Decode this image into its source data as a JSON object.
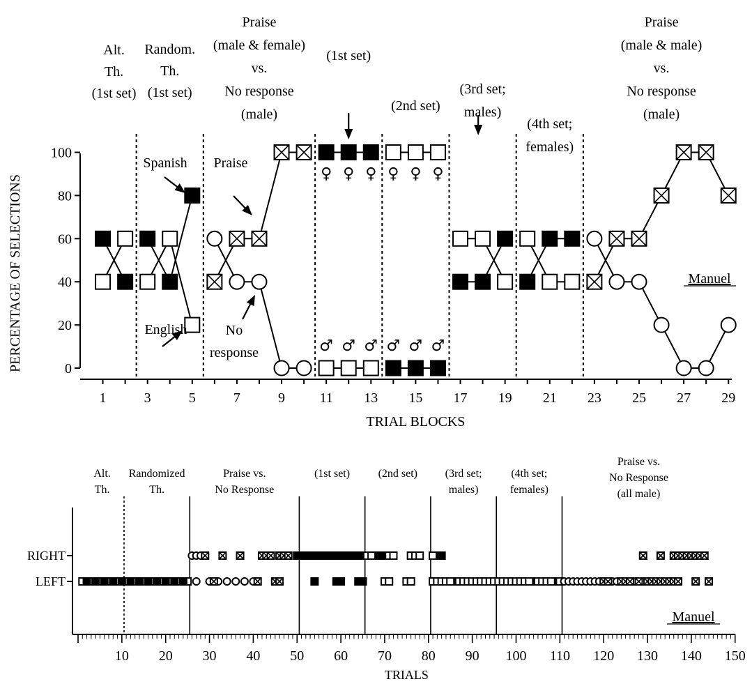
{
  "chart_data": [
    {
      "type": "line",
      "ylabel": "PERCENTAGE OF SELECTIONS",
      "xlabel": "TRIAL BLOCKS",
      "xlim": [
        0,
        29
      ],
      "ylim": [
        0,
        100
      ],
      "x_ticks": [
        1,
        3,
        5,
        7,
        9,
        11,
        13,
        15,
        17,
        19,
        21,
        23,
        25,
        27,
        29
      ],
      "y_ticks": [
        0,
        20,
        40,
        60,
        80,
        100
      ],
      "phase_dividers": [
        2.5,
        5.5,
        10.5,
        13.5,
        16.5,
        19.5,
        22.5
      ],
      "subject_label": "Manuel",
      "phase_labels": [
        {
          "at": 1.5,
          "lines": [
            "Alt.",
            "Th.",
            "(1st set)"
          ]
        },
        {
          "at": 4,
          "lines": [
            "Random.",
            "Th.",
            "(1st set)"
          ]
        },
        {
          "at": 8,
          "lines": [
            "Praise",
            "(male & female)",
            "vs.",
            "No response",
            "(male)"
          ]
        },
        {
          "at": 12,
          "lines": [
            "(1st set)"
          ]
        },
        {
          "at": 15,
          "lines": [
            "(2nd set)"
          ]
        },
        {
          "at": 18,
          "lines": [
            "(3rd set;",
            "males)"
          ]
        },
        {
          "at": 21,
          "lines": [
            "(4th set;",
            "females)"
          ]
        },
        {
          "at": 26,
          "lines": [
            "Praise",
            "(male & male)",
            "vs.",
            "No response",
            "(male)"
          ]
        }
      ],
      "annotations": {
        "spanish": "Spanish",
        "english": "English",
        "praise": "Praise",
        "no_response_1": "No",
        "no_response_2": "response"
      },
      "series": [
        {
          "marker": "filled-square",
          "segments": [
            {
              "x": [
                1,
                2
              ],
              "y": [
                60,
                40
              ]
            },
            {
              "x": [
                3,
                4,
                5
              ],
              "y": [
                60,
                40,
                80
              ]
            },
            {
              "x": [
                11,
                12,
                13
              ],
              "y": [
                100,
                100,
                100
              ]
            },
            {
              "x": [
                14,
                15,
                16
              ],
              "y": [
                0,
                0,
                0
              ]
            },
            {
              "x": [
                17,
                18,
                19
              ],
              "y": [
                40,
                40,
                60
              ]
            },
            {
              "x": [
                20,
                21,
                22
              ],
              "y": [
                40,
                60,
                60
              ]
            }
          ]
        },
        {
          "marker": "open-square",
          "segments": [
            {
              "x": [
                1,
                2
              ],
              "y": [
                40,
                60
              ]
            },
            {
              "x": [
                3,
                4,
                5
              ],
              "y": [
                40,
                60,
                20
              ]
            },
            {
              "x": [
                11,
                12,
                13
              ],
              "y": [
                0,
                0,
                0
              ]
            },
            {
              "x": [
                14,
                15,
                16
              ],
              "y": [
                100,
                100,
                100
              ]
            },
            {
              "x": [
                17,
                18,
                19
              ],
              "y": [
                60,
                60,
                40
              ]
            },
            {
              "x": [
                20,
                21,
                22
              ],
              "y": [
                60,
                40,
                40
              ]
            }
          ]
        },
        {
          "marker": "crossed-square",
          "segments": [
            {
              "x": [
                6,
                7,
                8,
                9,
                10
              ],
              "y": [
                40,
                60,
                60,
                100,
                100
              ]
            },
            {
              "x": [
                23,
                24,
                25,
                26,
                27,
                28,
                29
              ],
              "y": [
                40,
                60,
                60,
                80,
                100,
                100,
                80
              ]
            }
          ]
        },
        {
          "marker": "open-circle",
          "segments": [
            {
              "x": [
                6,
                7,
                8,
                9,
                10
              ],
              "y": [
                60,
                40,
                40,
                0,
                0
              ]
            },
            {
              "x": [
                23,
                24,
                25,
                26,
                27,
                28,
                29
              ],
              "y": [
                60,
                40,
                40,
                20,
                0,
                0,
                20
              ]
            }
          ]
        }
      ],
      "gender_symbols": {
        "female": "♀",
        "male": "♂",
        "female_blocks": [
          11,
          12,
          13,
          14,
          15,
          16
        ],
        "male_blocks": [
          11,
          12,
          13,
          14,
          15,
          16
        ]
      }
    },
    {
      "type": "scatter",
      "xlabel": "TRIALS",
      "xlim": [
        0,
        150
      ],
      "x_ticks": [
        10,
        20,
        30,
        40,
        50,
        60,
        70,
        80,
        90,
        100,
        110,
        120,
        130,
        140,
        150
      ],
      "y_categories": [
        "RIGHT",
        "LEFT"
      ],
      "subject_label": "Manuel",
      "dotted_dividers": [
        10.5
      ],
      "solid_dividers": [
        25.5,
        50.5,
        65.5,
        80.5,
        95.5,
        110.5
      ],
      "phase_labels": [
        {
          "at": 5.5,
          "lines": [
            "Alt.",
            "Th."
          ]
        },
        {
          "at": 18,
          "lines": [
            "Randomized",
            "Th."
          ]
        },
        {
          "at": 38,
          "lines": [
            "Praise vs.",
            "No Response"
          ]
        },
        {
          "at": 58,
          "lines": [
            "(1st set)"
          ]
        },
        {
          "at": 73,
          "lines": [
            "(2nd set)"
          ]
        },
        {
          "at": 88,
          "lines": [
            "(3rd set;",
            "males)"
          ]
        },
        {
          "at": 103,
          "lines": [
            "(4th set;",
            "females)"
          ]
        },
        {
          "at": 128,
          "lines": [
            "Praise vs.",
            "No Response",
            "(all male)"
          ]
        }
      ],
      "points": [
        {
          "marker": "open-square",
          "row": "LEFT",
          "x": [
            1,
            3,
            5,
            7,
            9,
            11,
            13,
            15,
            17,
            19,
            21,
            23,
            25
          ]
        },
        {
          "marker": "filled-square",
          "row": "LEFT",
          "x": [
            2,
            4,
            6,
            8,
            10,
            12,
            14,
            16,
            18,
            20,
            22,
            24
          ]
        },
        {
          "marker": "open-circle",
          "row": "RIGHT",
          "x": [
            26,
            27,
            28
          ]
        },
        {
          "marker": "crossed-square",
          "row": "RIGHT",
          "x": [
            29,
            33,
            37,
            42,
            43,
            44,
            46,
            47,
            48
          ]
        },
        {
          "marker": "open-circle",
          "row": "LEFT",
          "x": [
            27,
            30,
            32,
            34,
            36,
            38,
            40
          ]
        },
        {
          "marker": "crossed-square",
          "row": "LEFT",
          "x": [
            31,
            41,
            45,
            46
          ]
        },
        {
          "marker": "filled-square",
          "row": "RIGHT",
          "x": [
            50,
            51,
            52,
            53,
            54,
            55,
            56,
            57,
            58,
            59,
            60,
            61,
            62,
            63,
            64,
            65,
            66,
            67,
            68,
            69,
            70,
            81,
            82,
            83
          ]
        },
        {
          "marker": "filled-square",
          "row": "LEFT",
          "x": [
            54,
            59,
            60,
            64,
            65,
            86,
            104,
            109
          ]
        },
        {
          "marker": "open-square",
          "row": "RIGHT",
          "x": [
            66,
            67,
            71,
            72,
            76,
            77,
            78,
            81
          ]
        },
        {
          "marker": "open-square",
          "row": "LEFT",
          "x": [
            70,
            71,
            75,
            76,
            81,
            82,
            83,
            84,
            85,
            87,
            88,
            89,
            90,
            91,
            92,
            93,
            94,
            95,
            96,
            97,
            98,
            99,
            100,
            101,
            102,
            103,
            105,
            106,
            107,
            108,
            110
          ]
        },
        {
          "marker": "open-circle",
          "row": "LEFT",
          "x": [
            111,
            112,
            113,
            114,
            115,
            116,
            117,
            118,
            119,
            120,
            121,
            122,
            123,
            124,
            125,
            126,
            127,
            128,
            129
          ]
        },
        {
          "marker": "crossed-square",
          "row": "LEFT",
          "x": [
            120,
            121,
            124,
            125,
            126,
            128,
            130,
            131,
            132,
            133,
            134,
            135,
            136,
            137,
            141,
            144
          ]
        },
        {
          "marker": "crossed-square",
          "row": "RIGHT",
          "x": [
            129,
            133,
            136,
            137,
            138,
            139,
            140,
            141,
            142,
            143
          ]
        }
      ]
    }
  ]
}
